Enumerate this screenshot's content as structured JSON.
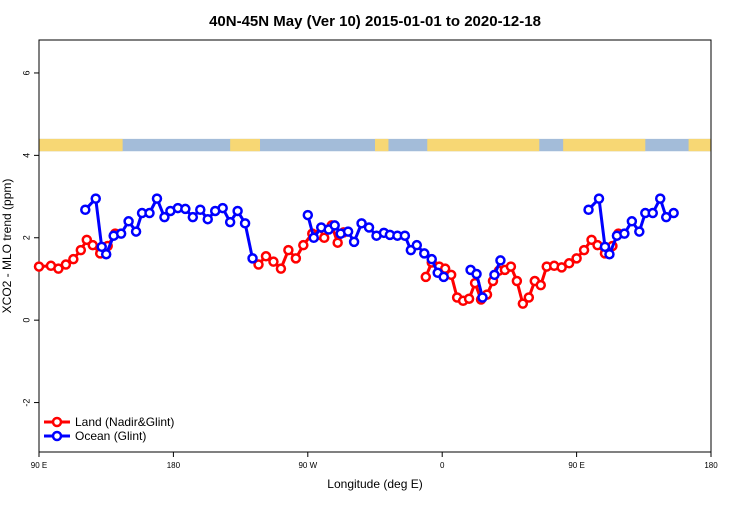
{
  "chart_data": {
    "type": "line",
    "title": "40N-45N May (Ver 10)   2015-01-01 to 2020-12-18",
    "xlabel": "Longitude (deg E)",
    "ylabel": "XCO2 - MLO trend (ppm)",
    "xlim": [
      90,
      540
    ],
    "ylim": [
      -3.2,
      6.8
    ],
    "x_ticks": [
      {
        "value": 90,
        "label": "90 E"
      },
      {
        "value": 180,
        "label": "180"
      },
      {
        "value": 270,
        "label": "90 W"
      },
      {
        "value": 360,
        "label": "0"
      },
      {
        "value": 450,
        "label": "90 E"
      },
      {
        "value": 540,
        "label": "180"
      }
    ],
    "y_ticks": [
      -2,
      0,
      2,
      4,
      6
    ],
    "legend_position": "bottom-left",
    "land_ocean_strip": {
      "y_range": [
        4.1,
        4.4
      ],
      "land_color": "#f7d774",
      "ocean_color": "#a3bcd9",
      "land_spans": [
        [
          90,
          146
        ],
        [
          218,
          238
        ],
        [
          315,
          324
        ],
        [
          350,
          425
        ],
        [
          441,
          496
        ],
        [
          525,
          540
        ]
      ]
    },
    "series": [
      {
        "name": "Land (Nadir&Glint)",
        "color": "#ff0000",
        "points": [
          [
            90,
            1.3
          ],
          [
            98,
            1.32
          ],
          [
            103,
            1.25
          ],
          [
            108,
            1.35
          ],
          [
            113,
            1.48
          ],
          [
            118,
            1.7
          ],
          [
            122,
            1.95
          ],
          [
            126,
            1.82
          ],
          [
            131,
            1.62
          ],
          [
            136,
            1.8
          ],
          [
            141,
            2.1
          ],
          null,
          [
            237,
            1.35
          ],
          [
            242,
            1.55
          ],
          [
            247,
            1.42
          ],
          [
            252,
            1.25
          ],
          [
            257,
            1.7
          ],
          [
            262,
            1.5
          ],
          [
            267,
            1.82
          ],
          [
            273,
            2.1
          ],
          [
            277,
            2.07
          ],
          [
            281,
            2.0
          ],
          [
            286,
            2.3
          ],
          [
            290,
            1.88
          ],
          [
            294,
            2.13
          ],
          null,
          [
            349,
            1.05
          ],
          [
            353,
            1.4
          ],
          [
            358,
            1.3
          ],
          [
            362,
            1.25
          ],
          [
            366,
            1.1
          ],
          [
            370,
            0.55
          ],
          [
            374,
            0.47
          ],
          [
            378,
            0.52
          ],
          [
            382,
            0.9
          ],
          [
            386,
            0.5
          ],
          [
            390,
            0.62
          ],
          [
            394,
            0.95
          ],
          [
            398,
            1.2
          ],
          [
            402,
            1.22
          ],
          [
            406,
            1.3
          ],
          [
            410,
            0.95
          ],
          [
            414,
            0.4
          ],
          [
            418,
            0.55
          ],
          [
            422,
            0.95
          ],
          [
            426,
            0.85
          ],
          [
            430,
            1.3
          ],
          [
            435,
            1.32
          ],
          [
            440,
            1.28
          ],
          [
            445,
            1.38
          ],
          [
            450,
            1.5
          ],
          [
            455,
            1.7
          ],
          [
            460,
            1.95
          ],
          [
            464,
            1.82
          ],
          [
            469,
            1.62
          ],
          [
            474,
            1.8
          ],
          [
            478,
            2.1
          ]
        ]
      },
      {
        "name": "Ocean (Glint)",
        "color": "#0000ff",
        "points": [
          [
            121,
            2.68
          ],
          [
            128,
            2.95
          ],
          [
            132,
            1.78
          ],
          [
            135,
            1.6
          ],
          [
            140,
            2.05
          ],
          [
            145,
            2.1
          ],
          [
            150,
            2.4
          ],
          [
            155,
            2.15
          ],
          [
            159,
            2.6
          ],
          [
            164,
            2.6
          ],
          [
            169,
            2.95
          ],
          [
            174,
            2.5
          ],
          [
            178,
            2.65
          ],
          [
            183,
            2.72
          ],
          [
            188,
            2.7
          ],
          [
            193,
            2.5
          ],
          [
            198,
            2.68
          ],
          [
            203,
            2.45
          ],
          [
            208,
            2.65
          ],
          [
            213,
            2.72
          ],
          [
            218,
            2.38
          ],
          [
            223,
            2.65
          ],
          [
            228,
            2.35
          ],
          [
            233,
            1.5
          ],
          null,
          [
            270,
            2.55
          ],
          [
            274,
            2.0
          ],
          [
            279,
            2.25
          ],
          [
            284,
            2.2
          ],
          [
            288,
            2.3
          ],
          [
            292,
            2.1
          ],
          [
            297,
            2.15
          ],
          [
            301,
            1.9
          ],
          [
            306,
            2.35
          ],
          [
            311,
            2.25
          ],
          [
            316,
            2.05
          ],
          [
            321,
            2.12
          ],
          [
            325,
            2.07
          ],
          [
            330,
            2.05
          ],
          [
            335,
            2.05
          ],
          [
            339,
            1.7
          ],
          [
            343,
            1.82
          ],
          [
            348,
            1.62
          ],
          [
            353,
            1.48
          ],
          [
            357,
            1.15
          ],
          [
            361,
            1.05
          ],
          null,
          [
            379,
            1.22
          ],
          [
            383,
            1.12
          ],
          [
            387,
            0.55
          ],
          null,
          [
            395,
            1.1
          ],
          [
            399,
            1.45
          ],
          null,
          [
            458,
            2.68
          ],
          [
            465,
            2.95
          ],
          [
            469,
            1.78
          ],
          [
            472,
            1.6
          ],
          [
            477,
            2.05
          ],
          [
            482,
            2.1
          ],
          [
            487,
            2.4
          ],
          [
            492,
            2.15
          ],
          [
            496,
            2.6
          ],
          [
            501,
            2.6
          ],
          [
            506,
            2.95
          ],
          [
            510,
            2.5
          ],
          [
            515,
            2.6
          ]
        ]
      }
    ]
  }
}
